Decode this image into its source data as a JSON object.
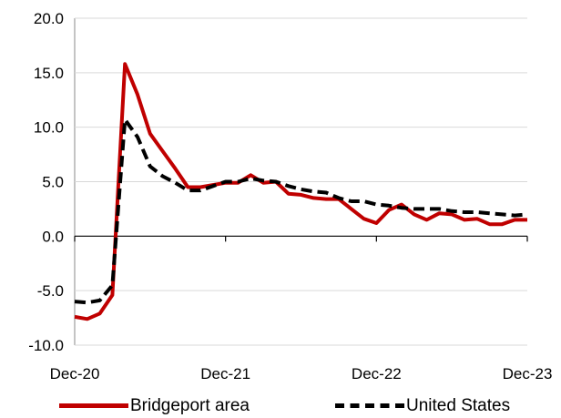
{
  "chart_data": {
    "type": "line",
    "title": "",
    "xlabel": "",
    "ylabel": "",
    "ylim": [
      -10,
      20
    ],
    "y_ticks": [
      "20.0",
      "15.0",
      "10.0",
      "5.0",
      "0.0",
      "-5.0",
      "-10.0"
    ],
    "x_ticks": [
      "Dec-20",
      "Dec-21",
      "Dec-22",
      "Dec-23"
    ],
    "grid": true,
    "legend_position": "bottom",
    "x": [
      "Dec-20",
      "Jan-21",
      "Feb-21",
      "Mar-21",
      "Apr-21",
      "May-21",
      "Jun-21",
      "Jul-21",
      "Aug-21",
      "Sep-21",
      "Oct-21",
      "Nov-21",
      "Dec-21",
      "Jan-22",
      "Feb-22",
      "Mar-22",
      "Apr-22",
      "May-22",
      "Jun-22",
      "Jul-22",
      "Aug-22",
      "Sep-22",
      "Oct-22",
      "Nov-22",
      "Dec-22",
      "Jan-23",
      "Feb-23",
      "Mar-23",
      "Apr-23",
      "May-23",
      "Jun-23",
      "Jul-23",
      "Aug-23",
      "Sep-23",
      "Oct-23",
      "Nov-23",
      "Dec-23"
    ],
    "series": [
      {
        "name": "Bridgeport area",
        "color": "#c00000",
        "style": "solid",
        "values": [
          -7.4,
          -7.6,
          -7.1,
          -5.4,
          15.8,
          13.0,
          9.4,
          7.8,
          6.2,
          4.5,
          4.5,
          4.7,
          4.9,
          4.9,
          5.6,
          4.9,
          5.0,
          3.9,
          3.8,
          3.5,
          3.4,
          3.4,
          2.5,
          1.6,
          1.2,
          2.4,
          2.9,
          2.0,
          1.5,
          2.1,
          2.0,
          1.5,
          1.6,
          1.1,
          1.1,
          1.5,
          1.5
        ]
      },
      {
        "name": "United States",
        "color": "#000000",
        "style": "dashed",
        "values": [
          -6.0,
          -6.1,
          -5.9,
          -4.5,
          10.7,
          9.1,
          6.4,
          5.5,
          4.9,
          4.2,
          4.2,
          4.6,
          5.0,
          5.0,
          5.3,
          5.1,
          5.0,
          4.6,
          4.3,
          4.1,
          4.0,
          3.5,
          3.2,
          3.2,
          2.9,
          2.8,
          2.6,
          2.5,
          2.5,
          2.5,
          2.3,
          2.2,
          2.2,
          2.1,
          2.0,
          1.9,
          2.0
        ]
      }
    ]
  }
}
